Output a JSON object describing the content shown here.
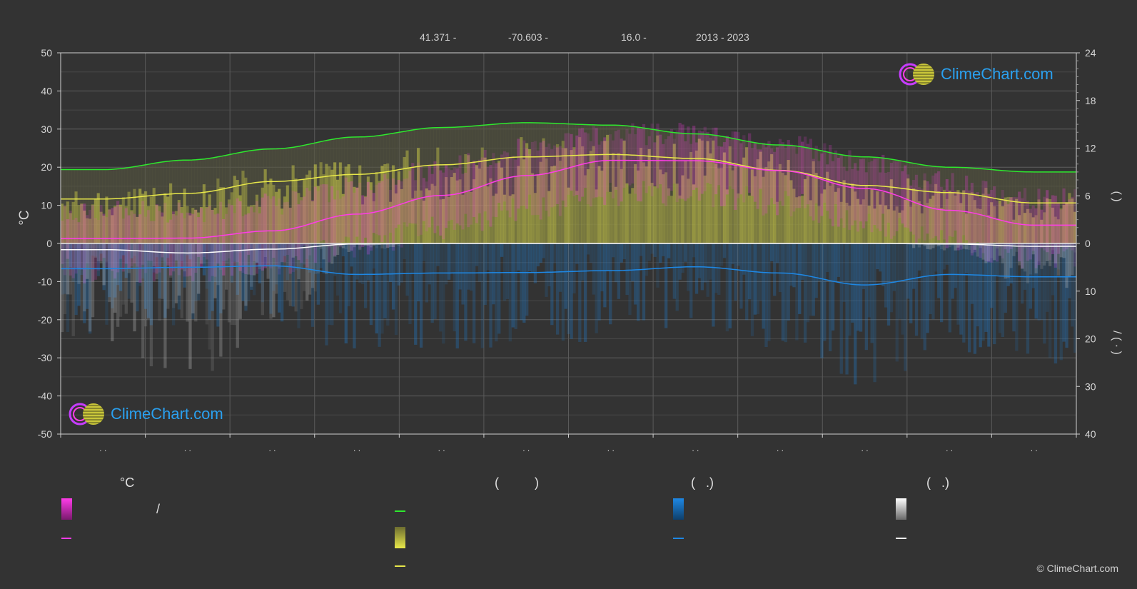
{
  "header": {
    "lat": "41.371 -",
    "lon": "-70.603 -",
    "elev": "16.0 -",
    "years": "2013 - 2023"
  },
  "brand": {
    "logo_text": "ClimeChart.com",
    "copyright": "© ClimeChart.com"
  },
  "legend": {
    "temp_title": "°C",
    "sun_title": "(          )",
    "rain_title": "(   .)",
    "snow_title": "(   .)",
    "slash": "/"
  },
  "colors": {
    "background": "#333333",
    "grid": "#5a5a5a",
    "magenta": "#ff3ce8",
    "yellow": "#e8e84a",
    "green": "#2ee82e",
    "blue": "#1e88e5",
    "white": "#ffffff"
  },
  "chart_data": {
    "type": "area",
    "x": [
      1,
      2,
      3,
      4,
      5,
      6,
      7,
      8,
      9,
      10,
      11,
      12
    ],
    "month_tick_labels": [
      ". .",
      ". .",
      ". .",
      ". .",
      ". .",
      ". .",
      ". .",
      ". .",
      ". .",
      ". .",
      ". .",
      ". ."
    ],
    "left_axis": {
      "label": "°C",
      "ylim": [
        -50,
        50
      ],
      "ticks": [
        50,
        40,
        30,
        20,
        10,
        0,
        -10,
        -20,
        -30,
        -40,
        -50
      ]
    },
    "right_axis_top": {
      "label": "(   )",
      "ylim": [
        0,
        24
      ],
      "ticks": [
        24,
        18,
        12,
        6,
        0
      ]
    },
    "right_axis_bottom": {
      "label": "/ (  ·  )",
      "ylim": [
        0,
        40
      ],
      "ticks": [
        0,
        10,
        20,
        30,
        40
      ]
    },
    "grid": true,
    "series": [
      {
        "key": "daylight",
        "axis": "right_top",
        "values": [
          9.3,
          10.5,
          11.9,
          13.4,
          14.6,
          15.2,
          14.9,
          13.8,
          12.4,
          10.9,
          9.6,
          9.0
        ]
      },
      {
        "key": "sunshine",
        "axis": "right_top",
        "values": [
          5.6,
          6.3,
          7.8,
          8.7,
          9.9,
          10.9,
          11.2,
          10.7,
          9.2,
          7.3,
          6.4,
          5.1
        ]
      },
      {
        "key": "mean_temp",
        "axis": "left",
        "values": [
          1.3,
          1.4,
          3.3,
          7.7,
          12.6,
          17.8,
          21.8,
          21.7,
          19.1,
          14.4,
          8.7,
          4.8
        ]
      },
      {
        "key": "snowfall",
        "axis": "right_bottom",
        "values": [
          1.3,
          2.0,
          1.2,
          0.1,
          0,
          0,
          0,
          0,
          0,
          0,
          0.1,
          0.6
        ]
      },
      {
        "key": "rainfall",
        "axis": "right_bottom",
        "values": [
          5.3,
          5.0,
          4.7,
          6.5,
          6.2,
          6.1,
          5.7,
          4.9,
          6.2,
          8.7,
          6.5,
          7.0
        ]
      }
    ]
  }
}
